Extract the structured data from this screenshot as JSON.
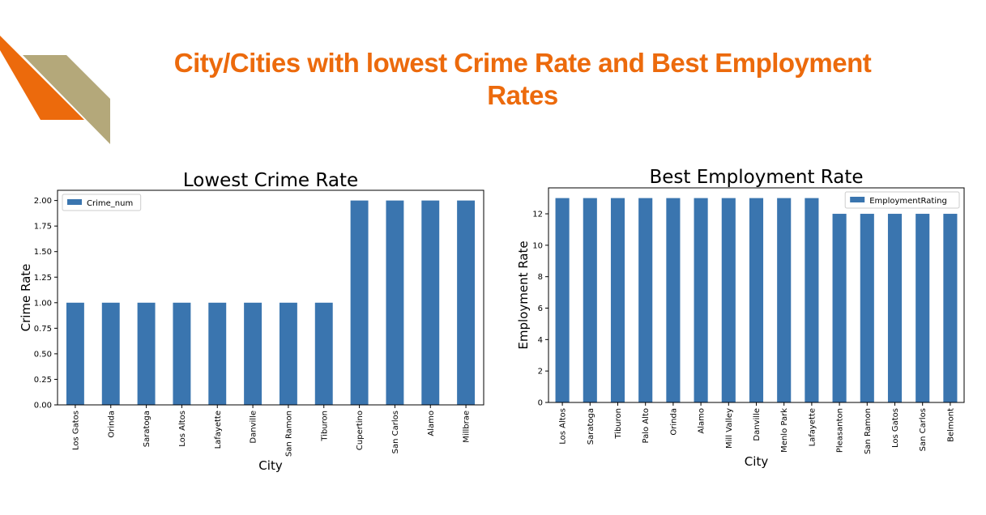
{
  "colors": {
    "title": "#ec6a0c",
    "accent_orange": "#ec6a0c",
    "accent_tan": "#b4a87a",
    "bar": "#3a75af"
  },
  "slide": {
    "title": "City/Cities with lowest Crime Rate and Best Employment Rates"
  },
  "chart_data": [
    {
      "type": "bar",
      "title": "Lowest Crime Rate",
      "xlabel": "City",
      "ylabel": "Crime Rate",
      "categories": [
        "Los Gatos",
        "Orinda",
        "Saratoga",
        "Los Altos",
        "Lafayette",
        "Danville",
        "San Ramon",
        "Tiburon",
        "Cupertino",
        "San Carlos",
        "Alamo",
        "Millbrae"
      ],
      "series": [
        {
          "name": "Crime_num",
          "values": [
            1,
            1,
            1,
            1,
            1,
            1,
            1,
            1,
            2,
            2,
            2,
            2
          ]
        }
      ],
      "ylim": [
        0,
        2.1
      ],
      "yticks": [
        "0.00",
        "0.25",
        "0.50",
        "0.75",
        "1.00",
        "1.25",
        "1.50",
        "1.75",
        "2.00"
      ],
      "legend": "top-left",
      "grid": false
    },
    {
      "type": "bar",
      "title": "Best Employment Rate",
      "xlabel": "City",
      "ylabel": "Employment Rate",
      "categories": [
        "Los Altos",
        "Saratoga",
        "Tiburon",
        "Palo Alto",
        "Orinda",
        "Alamo",
        "Mill Valley",
        "Danville",
        "Menlo Park",
        "Lafayette",
        "Pleasanton",
        "San Ramon",
        "Los Gatos",
        "San Carlos",
        "Belmont"
      ],
      "series": [
        {
          "name": "EmploymentRating",
          "values": [
            13,
            13,
            13,
            13,
            13,
            13,
            13,
            13,
            13,
            13,
            12,
            12,
            12,
            12,
            12
          ]
        }
      ],
      "ylim": [
        0,
        13.65
      ],
      "yticks": [
        "0",
        "2",
        "4",
        "6",
        "8",
        "10",
        "12"
      ],
      "legend": "top-right",
      "grid": false
    }
  ]
}
